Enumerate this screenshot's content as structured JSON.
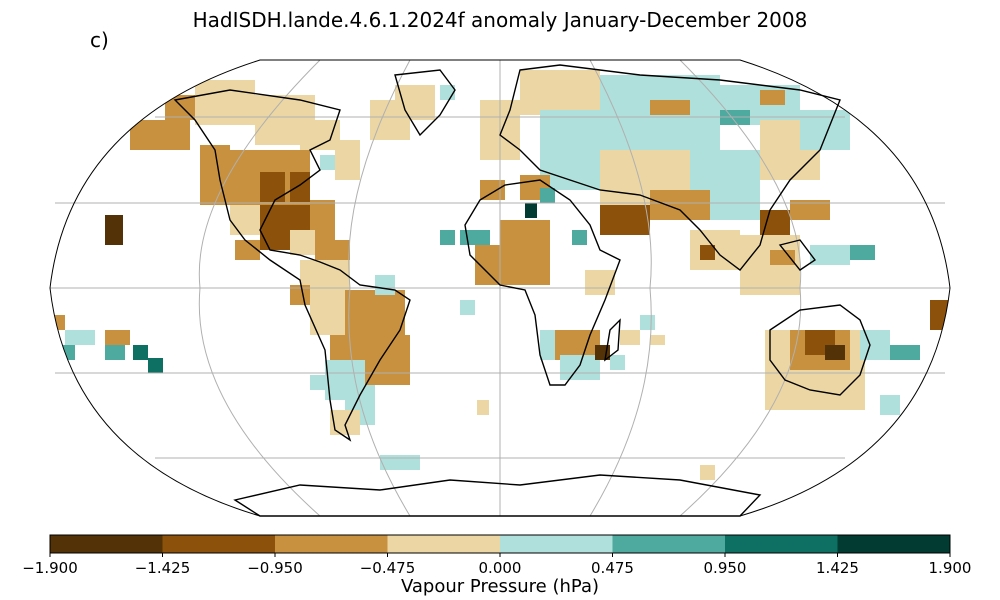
{
  "title": "HadISDH.lande.4.6.1.2024f anomaly January-December 2008",
  "panel_label": "c)",
  "colorbar": {
    "label": "Vapour Pressure (hPa)",
    "ticks": [
      "−1.900",
      "−1.425",
      "−0.950",
      "−0.475",
      "0.000",
      "0.475",
      "0.950",
      "1.425",
      "1.900"
    ],
    "colors": [
      "#523206",
      "#8c510a",
      "#c8913f",
      "#ecd7a4",
      "#afe0db",
      "#4ea99f",
      "#0e6f63",
      "#013b31"
    ]
  },
  "projection": "Robinson",
  "colors": {
    "land_line": "#000000",
    "grid": "#b0b0b0"
  }
}
